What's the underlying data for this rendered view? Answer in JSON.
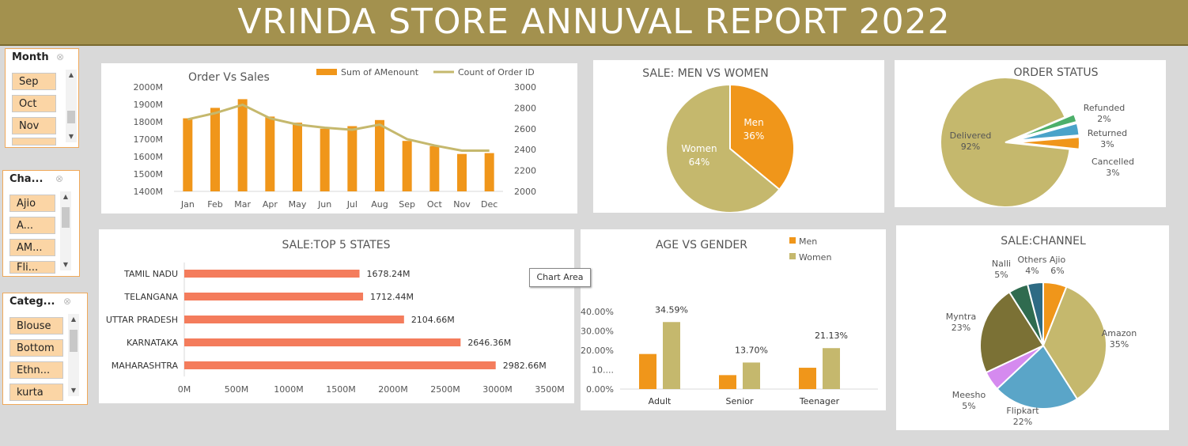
{
  "report_title": "VRINDA STORE ANNUVAL REPORT 2022",
  "slicers": {
    "month": {
      "header": "Month",
      "items": [
        "Sep",
        "Oct",
        "Nov",
        ""
      ]
    },
    "channel": {
      "header": "Cha...",
      "items": [
        "Ajio",
        "A...",
        "AM...",
        "Fli..."
      ]
    },
    "category": {
      "header": "Categ...",
      "items": [
        "Blouse",
        "Bottom",
        "Ethn...",
        "kurta"
      ]
    }
  },
  "tooltip": "Chart Area",
  "colors": {
    "orange": "#f0961a",
    "khaki": "#c5b86d",
    "salmon": "#f47c5c",
    "banner": "#a3914e"
  },
  "chart_data": [
    {
      "id": "order_vs_sales",
      "type": "bar",
      "title": "Order Vs Sales",
      "categories": [
        "Jan",
        "Feb",
        "Mar",
        "Apr",
        "May",
        "Jun",
        "Jul",
        "Aug",
        "Sep",
        "Oct",
        "Nov",
        "Dec"
      ],
      "series": [
        {
          "name": "Sum of AMenount",
          "type": "bar",
          "axis": "left",
          "values": [
            1820,
            1880,
            1930,
            1830,
            1795,
            1760,
            1775,
            1810,
            1690,
            1660,
            1615,
            1620
          ]
        },
        {
          "name": "Count of Order ID",
          "type": "line",
          "axis": "right",
          "values": [
            2690,
            2750,
            2830,
            2700,
            2640,
            2610,
            2590,
            2640,
            2500,
            2440,
            2390,
            2390
          ]
        }
      ],
      "ylim_left": [
        1400,
        2000
      ],
      "yticks_left": [
        "2000M",
        "1900M",
        "1800M",
        "1700M",
        "1600M",
        "1500M",
        "1400M"
      ],
      "ylim_right": [
        2000,
        3000
      ],
      "yticks_right": [
        "3000",
        "2800",
        "2600",
        "2400",
        "2200",
        "2000"
      ],
      "legend": "top-right"
    },
    {
      "id": "sale_men_women",
      "type": "pie",
      "title": "SALE: MEN VS WOMEN",
      "labels": [
        "Men",
        "Women"
      ],
      "values": [
        36,
        64
      ],
      "value_labels": [
        "36%",
        "64%"
      ]
    },
    {
      "id": "order_status",
      "type": "pie",
      "title": "ORDER STATUS",
      "labels": [
        "Delivered",
        "Refunded",
        "Returned",
        "Cancelled"
      ],
      "values": [
        92,
        2,
        3,
        3
      ],
      "value_labels": [
        "92%",
        "2%",
        "3%",
        "3%"
      ]
    },
    {
      "id": "top_states",
      "type": "bar",
      "orientation": "horizontal",
      "title": "SALE:TOP 5 STATES",
      "categories": [
        "TAMIL NADU",
        "TELANGANA",
        "UTTAR PRADESH",
        "KARNATAKA",
        "MAHARASHTRA"
      ],
      "values": [
        1678.24,
        1712.44,
        2104.66,
        2646.36,
        2982.66
      ],
      "value_labels": [
        "1678.24M",
        "1712.44M",
        "2104.66M",
        "2646.36M",
        "2982.66M"
      ],
      "xlim": [
        0,
        3500
      ],
      "xticks": [
        "0M",
        "500M",
        "1000M",
        "1500M",
        "2000M",
        "2500M",
        "3000M",
        "3500M"
      ]
    },
    {
      "id": "age_vs_gender",
      "type": "bar",
      "title": "AGE VS GENDER",
      "categories": [
        "Adult",
        "Senior",
        "Teenager"
      ],
      "series": [
        {
          "name": "Men",
          "values": [
            18.1,
            7.2,
            11.0
          ]
        },
        {
          "name": "Women",
          "values": [
            34.59,
            13.7,
            21.13
          ]
        }
      ],
      "value_labels": [
        "34.59%",
        "13.70%",
        "21.13%"
      ],
      "yticks": [
        "40.00%",
        "30.00%",
        "20.00%",
        "10....",
        "0.00%"
      ],
      "ylim": [
        0,
        40
      ],
      "legend": "top-right"
    },
    {
      "id": "sale_channel",
      "type": "pie",
      "title": "SALE:CHANNEL",
      "labels": [
        "Ajio",
        "Amazon",
        "Flipkart",
        "Meesho",
        "Myntra",
        "Nalli",
        "Others"
      ],
      "values": [
        6,
        35,
        22,
        5,
        23,
        5,
        4
      ],
      "value_labels": [
        "6%",
        "35%",
        "22%",
        "5%",
        "23%",
        "5%",
        "4%"
      ],
      "slice_colors": [
        "#f0961a",
        "#c5b86d",
        "#5aa5c8",
        "#d58aef",
        "#7b7135",
        "#2f6b4f",
        "#2e6b84"
      ]
    }
  ]
}
